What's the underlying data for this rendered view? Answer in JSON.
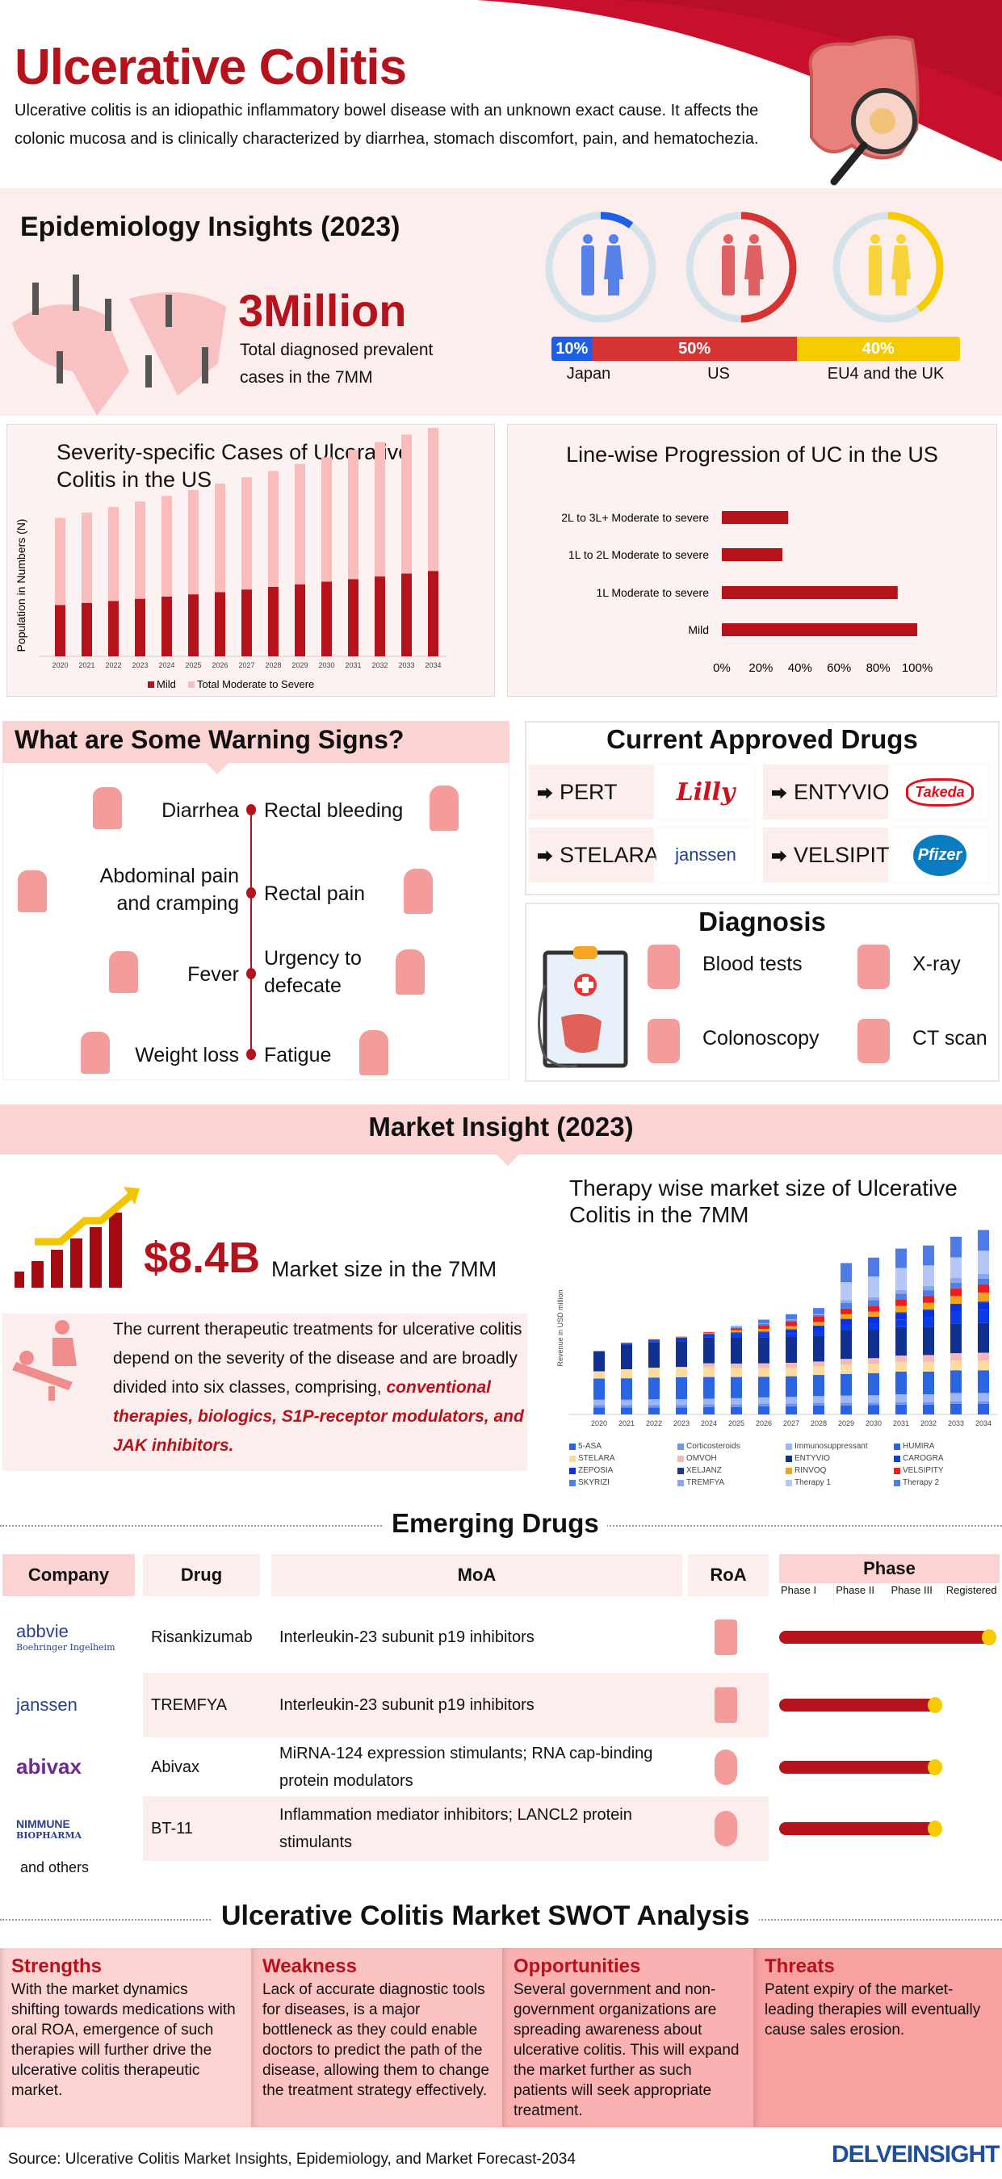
{
  "header": {
    "title": "Ulcerative Colitis",
    "description": "Ulcerative colitis is an idiopathic inflammatory bowel disease with an unknown exact cause. It affects the colonic mucosa and is clinically characterized by diarrhea, stomach discomfort, pain, and hematochezia."
  },
  "epidemiology": {
    "title": "Epidemiology Insights (2023)",
    "headline": "3Million",
    "subtext_1": "Total diagnosed prevalent",
    "subtext_2": "cases in the 7MM",
    "regions": [
      {
        "label": "Japan",
        "share": "10%",
        "value": 10,
        "color": "#1f5fe8"
      },
      {
        "label": "US",
        "share": "50%",
        "value": 50,
        "color": "#d63333"
      },
      {
        "label": "EU4 and the UK",
        "share": "40%",
        "value": 40,
        "color": "#f6cc00"
      }
    ]
  },
  "chart_data": [
    {
      "type": "bar",
      "stacked": true,
      "title": "Severity-specific Cases of Ulcerative Colitis in the US",
      "ylabel": "Population in Numbers (N)",
      "xlabel": "",
      "categories": [
        "2020",
        "2021",
        "2022",
        "2023",
        "2024",
        "2025",
        "2026",
        "2027",
        "2028",
        "2029",
        "2030",
        "2031",
        "2032",
        "2033",
        "2034"
      ],
      "series": [
        {
          "name": "Mild",
          "color": "#b5121b",
          "values": [
            138,
            144,
            149,
            155,
            161,
            167,
            173,
            180,
            187,
            194,
            201,
            208,
            215,
            223,
            230
          ]
        },
        {
          "name": "Total Moderate to Severe",
          "color": "#fbbcbc",
          "values": [
            235,
            243,
            253,
            262,
            271,
            281,
            292,
            302,
            312,
            324,
            335,
            348,
            362,
            374,
            385
          ]
        }
      ],
      "legend": "bottom",
      "grid": false
    },
    {
      "type": "bar",
      "orientation": "horizontal",
      "title": "Line-wise Progression of UC in the US",
      "categories": [
        "2L to 3L+ Moderate to severe",
        "1L to 2L Moderate to severe",
        "1L Moderate to severe",
        "Mild"
      ],
      "values": [
        34,
        31,
        90,
        100
      ],
      "xlim": [
        0,
        100
      ],
      "xticks": [
        "0%",
        "20%",
        "40%",
        "60%",
        "80%",
        "100%"
      ],
      "color": "#b5121b",
      "grid": false
    },
    {
      "type": "bar",
      "stacked": true,
      "title": "Therapy wise market size of Ulcerative Colitis in the 7MM",
      "ylabel": "Revenue in USD million",
      "legend": "bottom",
      "grid": false,
      "categories": [
        "2020",
        "2021",
        "2022",
        "2023",
        "2024",
        "2025",
        "2026",
        "2027",
        "2028",
        "2029",
        "2030",
        "2031",
        "2032",
        "2033",
        "2034"
      ],
      "series": [
        {
          "name": "5-ASA",
          "color": "#2962e6",
          "values": [
            27,
            27,
            27,
            27,
            29,
            29,
            32,
            32,
            35,
            35,
            36,
            38,
            38,
            41,
            41
          ]
        },
        {
          "name": "Corticosteroids",
          "color": "#6f94f2",
          "values": [
            10,
            10,
            10,
            10,
            10,
            10,
            10,
            10,
            10,
            10,
            10,
            10,
            10,
            10,
            10
          ]
        },
        {
          "name": "Immunosuppressant",
          "color": "#9fb6f5",
          "values": [
            20,
            20,
            22,
            22,
            22,
            24,
            24,
            26,
            26,
            28,
            28,
            30,
            30,
            32,
            32
          ]
        },
        {
          "name": "HUMIRA",
          "color": "#2a66e3",
          "values": [
            82,
            83,
            84,
            85,
            84,
            82,
            80,
            80,
            82,
            84,
            86,
            88,
            88,
            88,
            88
          ]
        },
        {
          "name": "STELARA",
          "color": "#fbdc9e",
          "values": [
            28,
            35,
            38,
            40,
            38,
            36,
            34,
            32,
            34,
            36,
            36,
            38,
            38,
            38,
            38
          ]
        },
        {
          "name": "OMVOH",
          "color": "#f8b7b7",
          "values": [
            0,
            0,
            0,
            0,
            15,
            16,
            18,
            20,
            18,
            22,
            22,
            24,
            26,
            28,
            30
          ]
        },
        {
          "name": "ENTYVIO",
          "color": "#10318f",
          "values": [
            78,
            95,
            98,
            100,
            100,
            100,
            100,
            100,
            100,
            110,
            110,
            110,
            110,
            115,
            115
          ]
        },
        {
          "name": "CAROGRA",
          "color": "#0b3be8",
          "values": [
            0,
            2,
            3,
            5,
            5,
            10,
            12,
            15,
            20,
            22,
            25,
            30,
            38,
            45,
            50
          ]
        },
        {
          "name": "ZEPOSIA",
          "color": "#0a2fe6",
          "values": [
            0,
            2,
            5,
            5,
            6,
            8,
            8,
            12,
            16,
            20,
            22,
            25,
            25,
            28,
            30
          ]
        },
        {
          "name": "XELJANZ",
          "color": "#163b8a",
          "values": [
            0,
            3,
            3,
            4,
            3,
            3,
            3,
            3,
            3,
            3,
            3,
            3,
            3,
            3,
            3
          ]
        },
        {
          "name": "RINVOQ",
          "color": "#f4a21b",
          "values": [
            0,
            0,
            2,
            4,
            4,
            8,
            10,
            12,
            14,
            18,
            20,
            24,
            26,
            30,
            35
          ]
        },
        {
          "name": "VELSIPITY",
          "color": "#ee1c1c",
          "values": [
            0,
            0,
            0,
            0,
            3,
            8,
            14,
            18,
            22,
            22,
            22,
            25,
            27,
            30,
            32
          ]
        },
        {
          "name": "SKYRIZI",
          "color": "#4f7ee8",
          "values": [
            0,
            0,
            0,
            0,
            0,
            3,
            5,
            5,
            5,
            22,
            22,
            22,
            22,
            22,
            22
          ]
        },
        {
          "name": "TREMFYA",
          "color": "#8aa7ef",
          "values": [
            0,
            0,
            0,
            0,
            0,
            3,
            3,
            3,
            3,
            10,
            12,
            15,
            16,
            18,
            18
          ]
        },
        {
          "name": "Therapy 1",
          "color": "#b6c6f5",
          "values": [
            0,
            0,
            0,
            0,
            0,
            0,
            0,
            0,
            0,
            70,
            80,
            85,
            80,
            80,
            90
          ]
        },
        {
          "name": "Therapy 2",
          "color": "#4f7be6",
          "values": [
            0,
            0,
            0,
            0,
            0,
            2,
            14,
            20,
            24,
            74,
            73,
            75,
            77,
            80,
            80
          ]
        }
      ]
    }
  ],
  "warning": {
    "title": "What are Some Warning Signs?",
    "left": [
      {
        "label": "Diarrhea"
      },
      {
        "label": "Abdominal pain and cramping"
      },
      {
        "label": "Fever"
      },
      {
        "label": "Weight loss"
      }
    ],
    "right": [
      {
        "label": "Rectal bleeding"
      },
      {
        "label": "Rectal pain"
      },
      {
        "label": "Urgency to defecate"
      },
      {
        "label": "Fatigue"
      }
    ]
  },
  "approved": {
    "title": "Current Approved Drugs",
    "drugs": [
      {
        "name": "PERT",
        "company": "Lilly",
        "color": "#d0101a"
      },
      {
        "name": "ENTYVIO",
        "company": "Takeda",
        "color": "#e0101a"
      },
      {
        "name": "STELARA",
        "company": "janssen",
        "color": "#1c3f94"
      },
      {
        "name": "VELSIPITY",
        "company": "Pfizer",
        "color": "#0a7dc2"
      }
    ]
  },
  "diagnosis": {
    "title": "Diagnosis",
    "items": [
      "Blood tests",
      "X-ray",
      "Colonoscopy",
      "CT scan"
    ]
  },
  "market": {
    "title": "Market Insight (2023)",
    "value": "$8.4B",
    "value_label": "Market size in the 7MM",
    "text": "The current therapeutic treatments for ulcerative colitis depend on the severity of the disease and are broadly divided into six classes, comprising, ",
    "highlight": "conventional therapies, biologics, S1P-receptor modulators, and JAK inhibitors."
  },
  "emerging": {
    "title": "Emerging Drugs",
    "headers": {
      "company": "Company",
      "drug": "Drug",
      "moa": "MoA",
      "roa": "RoA",
      "phase": "Phase"
    },
    "phases": [
      "Phase I",
      "Phase II",
      "Phase III",
      "Registered"
    ],
    "rows": [
      {
        "company": "abbvie",
        "company2": "Boehringer Ingelheim",
        "drug": "Risankizumab",
        "moa": "Interleukin-23 subunit p19 inhibitors",
        "roa": "injection-icon",
        "phase_progress": 4
      },
      {
        "company": "janssen",
        "drug": "TREMFYA",
        "moa": "Interleukin-23 subunit p19 inhibitors",
        "roa": "syringe-icon",
        "phase_progress": 3
      },
      {
        "company": "abivax",
        "drug": "Abivax",
        "moa": "MiRNA-124 expression stimulants; RNA cap-binding protein modulators",
        "roa": "pill-icon",
        "phase_progress": 3
      },
      {
        "company": "NIMMUNE",
        "company2": "BIOPHARMA",
        "drug": "BT-11",
        "moa": "Inflammation mediator inhibitors; LANCL2 protein stimulants",
        "roa": "pill-icon",
        "phase_progress": 3
      }
    ],
    "others": "and others"
  },
  "swot": {
    "title": "Ulcerative Colitis Market SWOT Analysis",
    "items": [
      {
        "heading": "Strengths",
        "text": "With the market dynamics shifting towards medications with oral ROA, emergence of such therapies will further drive the ulcerative colitis therapeutic market.",
        "color": "#fcd3d3"
      },
      {
        "heading": "Weakness",
        "text": "Lack of accurate diagnostic tools for diseases, is a major bottleneck as they could enable doctors to predict the path of the disease, allowing them to change the treatment strategy effectively.",
        "color": "#fbc2c2"
      },
      {
        "heading": "Opportunities",
        "text": "Several government and non-government organizations are spreading awareness about ulcerative colitis. This will expand the market further as such patients will seek appropriate treatment.",
        "color": "#f9b1b1"
      },
      {
        "heading": "Threats",
        "text": "Patent expiry of the market-leading therapies will eventually cause sales erosion.",
        "color": "#f7a1a1"
      }
    ]
  },
  "footer": {
    "source": "Source: Ulcerative Colitis Market Insights, Epidemiology, and Market Forecast-2034",
    "brand": "DELVEINSIGHT"
  }
}
